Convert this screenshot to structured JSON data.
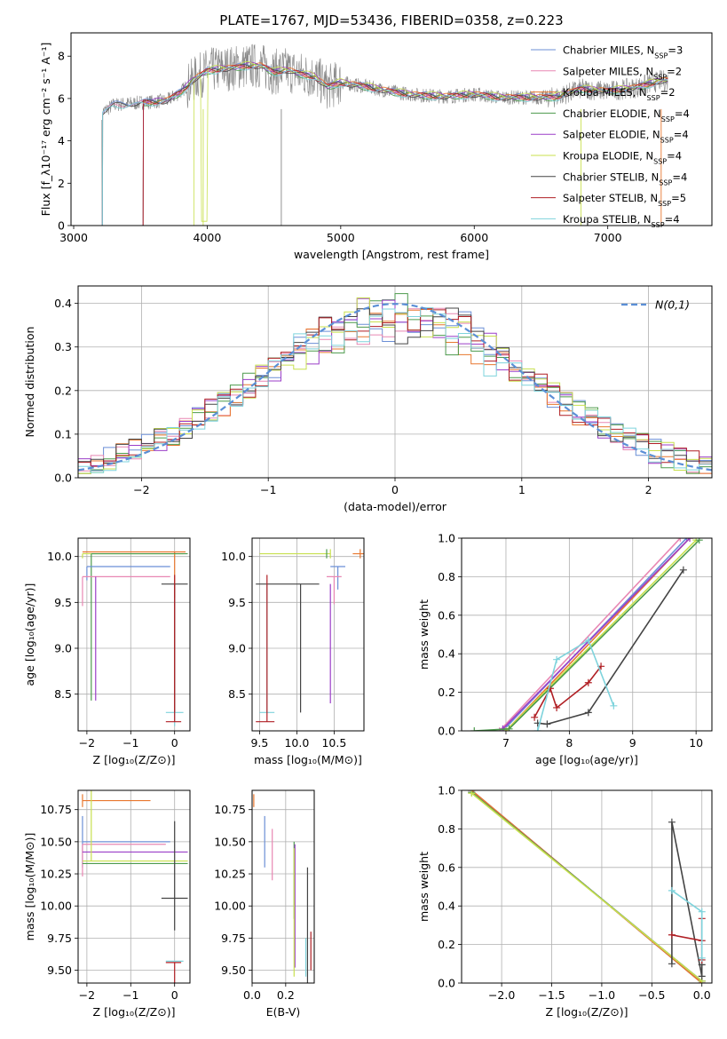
{
  "chart_data": [
    {
      "id": "spectrum",
      "type": "line",
      "title": "PLATE=1767, MJD=53436, FIBERID=0358, z=0.223",
      "xlabel": "wavelength [Angstrom, rest frame]",
      "ylabel": "Flux [f_λ10^-17 erg cm^-2 s^-1 A^-1]",
      "xlim": [
        2980,
        7780
      ],
      "ylim": [
        0,
        9.1
      ],
      "xticks": [
        3000,
        4000,
        5000,
        6000,
        7000
      ],
      "yticks": [
        0,
        2,
        4,
        6,
        8
      ],
      "grid": false,
      "legend_position": "top-right",
      "series": [
        {
          "name": "Chabrier MILES, N_SSP=3",
          "color": "#6b8fd6"
        },
        {
          "name": "Salpeter MILES, N_SSP=2",
          "color": "#e887b3"
        },
        {
          "name": "Kroupa MILES, N_SSP=2",
          "color": "#e8772e"
        },
        {
          "name": "Chabrier ELODIE, N_SSP=4",
          "color": "#4c9a4c"
        },
        {
          "name": "Salpeter ELODIE, N_SSP=4",
          "color": "#9b3ec8"
        },
        {
          "name": "Kroupa ELODIE, N_SSP=4",
          "color": "#c8e04e"
        },
        {
          "name": "Chabrier STELIB, N_SSP=4",
          "color": "#444444"
        },
        {
          "name": "Salpeter STELIB, N_SSP=5",
          "color": "#b01f24"
        },
        {
          "name": "Kroupa STELIB, N_SSP=4",
          "color": "#7ed3dc"
        }
      ],
      "data_color": "#888888",
      "model_x": [
        3200,
        3300,
        3500,
        3700,
        3800,
        3900,
        4000,
        4100,
        4200,
        4300,
        4400,
        4500,
        4600,
        4700,
        4800,
        4900,
        5000,
        5200,
        5400,
        5600,
        5800,
        6000,
        6200,
        6400,
        6600,
        6800,
        7000,
        7200,
        7400,
        7500
      ],
      "model_y": [
        5.3,
        5.7,
        5.8,
        5.9,
        6.3,
        6.9,
        7.3,
        7.4,
        7.45,
        7.55,
        7.55,
        7.25,
        7.35,
        7.15,
        7.05,
        6.55,
        6.75,
        6.55,
        6.3,
        6.15,
        6.1,
        6.2,
        6.05,
        6.05,
        6.05,
        6.45,
        6.35,
        6.5,
        6.85,
        6.85
      ]
    },
    {
      "id": "residuals",
      "type": "bar",
      "xlabel": "(data-model)/error",
      "ylabel": "Normed distribution",
      "xlim": [
        -2.5,
        2.5
      ],
      "ylim": [
        0,
        0.44
      ],
      "xticks": [
        -2,
        -1,
        0,
        1,
        2
      ],
      "yticks": [
        0.0,
        0.1,
        0.2,
        0.3,
        0.4
      ],
      "grid": true,
      "legend_position": "top-right",
      "legend": "N(0,1)",
      "bin_width": 0.1,
      "normal_curve": {
        "mean": 0,
        "sigma": 1,
        "color": "#5b8fd6"
      }
    },
    {
      "id": "age-vs-Z",
      "type": "scatter",
      "xlabel": "Z [log10(Z/Z⊙)]",
      "ylabel": "age  [log10(age/yr)]",
      "xlim": [
        -2.2,
        0.35
      ],
      "ylim": [
        8.1,
        10.2
      ],
      "xticks": [
        -2,
        -1,
        0
      ],
      "yticks": [
        8.5,
        9.0,
        9.5,
        10.0
      ],
      "grid": true,
      "points": [
        {
          "x": 0.0,
          "y": 10.05,
          "xerr": [
            2.1,
            0.25
          ],
          "yerr": [
            0.5,
            0.0
          ],
          "color": "#e8772e"
        },
        {
          "x": -2.1,
          "y": 10.03,
          "xerr": [
            0.0,
            2.3
          ],
          "yerr": [
            0.05,
            0.0
          ],
          "color": "#c8e04e"
        },
        {
          "x": -1.9,
          "y": 10.03,
          "xerr": [
            0.0,
            2.2
          ],
          "yerr": [
            1.6,
            0.0
          ],
          "color": "#4c9a4c"
        },
        {
          "x": -2.0,
          "y": 9.89,
          "xerr": [
            0.0,
            1.9
          ],
          "yerr": [
            0.15,
            0.0
          ],
          "color": "#6b8fd6"
        },
        {
          "x": -2.1,
          "y": 9.78,
          "xerr": [
            0.0,
            2.0
          ],
          "yerr": [
            0.32,
            0.0
          ],
          "color": "#e887b3"
        },
        {
          "x": -1.8,
          "y": 9.78,
          "xerr": [
            0.0,
            0.0
          ],
          "yerr": [
            1.35,
            0.0
          ],
          "color": "#9b3ec8"
        },
        {
          "x": 0.0,
          "y": 9.7,
          "xerr": [
            0.3,
            0.3
          ],
          "yerr": [
            1.4,
            0.0
          ],
          "color": "#444444"
        },
        {
          "x": 0.0,
          "y": 8.3,
          "xerr": [
            0.2,
            0.2
          ],
          "yerr": [
            0.15,
            0.0
          ],
          "color": "#7ed3dc"
        },
        {
          "x": 0.0,
          "y": 8.2,
          "xerr": [
            0.2,
            0.15
          ],
          "yerr": [
            0.0,
            1.6
          ],
          "color": "#b01f24"
        }
      ]
    },
    {
      "id": "age-vs-mass",
      "type": "scatter",
      "xlabel": "mass [log10(M/M⊙)]",
      "ylabel": "",
      "xlim": [
        9.4,
        10.9
      ],
      "ylim": [
        8.1,
        10.2
      ],
      "xticks": [
        9.5,
        10.0,
        10.5
      ],
      "yticks": [
        8.5,
        9.0,
        9.5,
        10.0
      ],
      "grid": true,
      "points": [
        {
          "x": 10.85,
          "y": 10.03,
          "xerr": [
            0.1,
            0.1
          ],
          "yerr": [
            0.05,
            0.05
          ],
          "color": "#e8772e"
        },
        {
          "x": 10.45,
          "y": 10.03,
          "xerr": [
            0.95,
            0.0
          ],
          "yerr": [
            0.05,
            0.05
          ],
          "color": "#c8e04e"
        },
        {
          "x": 10.4,
          "y": 10.03,
          "xerr": [
            0.0,
            0.0
          ],
          "yerr": [
            0.05,
            0.05
          ],
          "color": "#4c9a4c"
        },
        {
          "x": 10.55,
          "y": 9.89,
          "xerr": [
            0.1,
            0.1
          ],
          "yerr": [
            0.25,
            0.0
          ],
          "color": "#6b8fd6"
        },
        {
          "x": 10.5,
          "y": 9.78,
          "xerr": [
            0.1,
            0.1
          ],
          "yerr": [
            0.3,
            0.0
          ],
          "color": "#e887b3"
        },
        {
          "x": 10.45,
          "y": 9.7,
          "xerr": [
            0.0,
            0.0
          ],
          "yerr": [
            1.3,
            0.0
          ],
          "color": "#9b3ec8"
        },
        {
          "x": 10.05,
          "y": 9.7,
          "xerr": [
            0.6,
            0.25
          ],
          "yerr": [
            1.4,
            0.0
          ],
          "color": "#444444"
        },
        {
          "x": 9.6,
          "y": 8.3,
          "xerr": [
            0.1,
            0.1
          ],
          "yerr": [
            0.0,
            1.4
          ],
          "color": "#7ed3dc"
        },
        {
          "x": 9.6,
          "y": 8.2,
          "xerr": [
            0.15,
            0.1
          ],
          "yerr": [
            0.0,
            1.6
          ],
          "color": "#b01f24"
        }
      ]
    },
    {
      "id": "weight-vs-age",
      "type": "line",
      "xlabel": "age  [log10(age/yr)]",
      "ylabel": "mass weight",
      "xlim": [
        6.3,
        10.25
      ],
      "ylim": [
        0,
        1
      ],
      "xticks": [
        7,
        8,
        9,
        10
      ],
      "yticks": [
        0.0,
        0.2,
        0.4,
        0.6,
        0.8,
        1.0
      ],
      "grid": true,
      "series": [
        {
          "color": "#e887b3",
          "x": [
            6.9,
            9.75
          ],
          "y": [
            0.0,
            1.0
          ]
        },
        {
          "color": "#6b8fd6",
          "x": [
            6.95,
            9.85
          ],
          "y": [
            0.0,
            1.0
          ]
        },
        {
          "color": "#e8772e",
          "x": [
            7.0,
            9.9
          ],
          "y": [
            0.0,
            1.0
          ]
        },
        {
          "color": "#9b3ec8",
          "x": [
            6.95,
            9.9
          ],
          "y": [
            0.01,
            1.0
          ]
        },
        {
          "color": "#c8e04e",
          "x": [
            7.0,
            10.0
          ],
          "y": [
            0.0,
            0.99
          ]
        },
        {
          "color": "#4c9a4c",
          "x": [
            6.5,
            7.05,
            10.05
          ],
          "y": [
            0.0,
            0.01,
            0.99
          ]
        },
        {
          "color": "#444444",
          "x": [
            7.5,
            7.65,
            8.3,
            9.8
          ],
          "y": [
            0.04,
            0.035,
            0.095,
            0.835
          ]
        },
        {
          "color": "#b01f24",
          "x": [
            7.45,
            7.7,
            7.8,
            8.3,
            8.5
          ],
          "y": [
            0.07,
            0.22,
            0.12,
            0.25,
            0.335
          ]
        },
        {
          "color": "#7ed3dc",
          "x": [
            7.5,
            7.8,
            8.3,
            8.7
          ],
          "y": [
            0.0,
            0.37,
            0.47,
            0.13
          ]
        }
      ]
    },
    {
      "id": "mass-vs-Z",
      "type": "scatter",
      "xlabel": "Z [log10(Z/Z⊙)]",
      "ylabel": "mass [log10(M/M⊙)]",
      "xlim": [
        -2.2,
        0.35
      ],
      "ylim": [
        9.4,
        10.9
      ],
      "xticks": [
        -2,
        -1,
        0
      ],
      "yticks": [
        9.5,
        9.75,
        10.0,
        10.25,
        10.5,
        10.75
      ],
      "grid": true,
      "points": [
        {
          "x": -2.1,
          "y": 10.82,
          "xerr": [
            0.0,
            1.55
          ],
          "yerr": [
            0.05,
            0.05
          ],
          "color": "#e8772e"
        },
        {
          "x": -2.1,
          "y": 10.5,
          "xerr": [
            0.0,
            2.0
          ],
          "yerr": [
            0.2,
            0.2
          ],
          "color": "#6b8fd6"
        },
        {
          "x": -2.1,
          "y": 10.48,
          "xerr": [
            0.0,
            1.9
          ],
          "yerr": [
            0.25,
            0.0
          ],
          "color": "#e887b3"
        },
        {
          "x": -1.8,
          "y": 10.42,
          "xerr": [
            0.3,
            2.1
          ],
          "yerr": [
            0.0,
            0.0
          ],
          "color": "#9b3ec8"
        },
        {
          "x": -1.9,
          "y": 10.35,
          "xerr": [
            0.2,
            2.2
          ],
          "yerr": [
            0.0,
            0.95
          ],
          "color": "#c8e04e"
        },
        {
          "x": -2.1,
          "y": 10.33,
          "xerr": [
            0.0,
            2.4
          ],
          "yerr": [
            0.0,
            0.0
          ],
          "color": "#4c9a4c"
        },
        {
          "x": 0.0,
          "y": 10.06,
          "xerr": [
            0.3,
            0.3
          ],
          "yerr": [
            0.25,
            0.6
          ],
          "color": "#444444"
        },
        {
          "x": 0.0,
          "y": 9.56,
          "xerr": [
            0.2,
            0.15
          ],
          "yerr": [
            0.25,
            0.0
          ],
          "color": "#b01f24"
        },
        {
          "x": 0.0,
          "y": 9.57,
          "xerr": [
            0.2,
            0.2
          ],
          "yerr": [
            0.0,
            0.0
          ],
          "color": "#7ed3dc"
        }
      ]
    },
    {
      "id": "mass-vs-ebv",
      "type": "scatter",
      "xlabel": "E(B-V)",
      "ylabel": "",
      "xlim": [
        0,
        0.37
      ],
      "ylim": [
        9.4,
        10.9
      ],
      "xticks": [
        0.0,
        0.2
      ],
      "yticks": [
        9.5,
        9.75,
        10.0,
        10.25,
        10.5,
        10.75
      ],
      "grid": true,
      "points": [
        {
          "x": 0.01,
          "y": 10.82,
          "yerr": [
            0.05,
            0.05
          ],
          "color": "#e8772e"
        },
        {
          "x": 0.075,
          "y": 10.5,
          "yerr": [
            0.2,
            0.2
          ],
          "color": "#6b8fd6"
        },
        {
          "x": 0.12,
          "y": 10.4,
          "yerr": [
            0.2,
            0.2
          ],
          "color": "#e887b3"
        },
        {
          "x": 0.25,
          "y": 10.2,
          "yerr": [
            0.3,
            0.3
          ],
          "color": "#4c9a4c"
        },
        {
          "x": 0.255,
          "y": 10.0,
          "yerr": [
            0.48,
            0.48
          ],
          "color": "#9b3ec8"
        },
        {
          "x": 0.25,
          "y": 9.95,
          "yerr": [
            0.5,
            0.5
          ],
          "color": "#c8e04e"
        },
        {
          "x": 0.33,
          "y": 9.55,
          "yerr": [
            0.75,
            0.75
          ],
          "color": "#444444"
        },
        {
          "x": 0.32,
          "y": 9.6,
          "yerr": [
            0.15,
            0.15
          ],
          "color": "#7ed3dc"
        },
        {
          "x": 0.35,
          "y": 9.65,
          "yerr": [
            0.15,
            0.15
          ],
          "color": "#b01f24"
        }
      ]
    },
    {
      "id": "weight-vs-Z",
      "type": "line",
      "xlabel": "Z [log10(Z/Z⊙)]",
      "ylabel": "mass weight",
      "xlim": [
        -2.4,
        0.1
      ],
      "ylim": [
        0,
        1
      ],
      "xticks": [
        -2.0,
        -1.5,
        -1.0,
        -0.5,
        0.0
      ],
      "yticks": [
        0.0,
        0.2,
        0.4,
        0.6,
        0.8,
        1.0
      ],
      "grid": true,
      "series": [
        {
          "color": "#e887b3",
          "x": [
            -2.3,
            0.0
          ],
          "y": [
            1.0,
            0.0
          ]
        },
        {
          "color": "#6b8fd6",
          "x": [
            -2.3,
            0.0
          ],
          "y": [
            1.0,
            0.0
          ]
        },
        {
          "color": "#e8772e",
          "x": [
            -2.3,
            0.0
          ],
          "y": [
            1.0,
            0.0
          ]
        },
        {
          "color": "#9b3ec8",
          "x": [
            -2.3,
            0.0
          ],
          "y": [
            0.99,
            0.01
          ]
        },
        {
          "color": "#4c9a4c",
          "x": [
            -2.3,
            0.0
          ],
          "y": [
            0.99,
            0.01
          ]
        },
        {
          "color": "#c8e04e",
          "x": [
            -2.3,
            0.0
          ],
          "y": [
            0.985,
            0.01
          ]
        },
        {
          "color": "#444444",
          "x": [
            -0.3,
            -0.3,
            0.0,
            0.0
          ],
          "y": [
            0.1,
            0.835,
            0.035,
            0.095
          ]
        },
        {
          "color": "#b01f24",
          "x": [
            -0.3,
            0.0,
            0.0,
            0.0
          ],
          "y": [
            0.25,
            0.22,
            0.335,
            0.12
          ]
        },
        {
          "color": "#7ed3dc",
          "x": [
            -0.3,
            0.0,
            0.0
          ],
          "y": [
            0.48,
            0.37,
            0.13
          ]
        }
      ]
    }
  ]
}
